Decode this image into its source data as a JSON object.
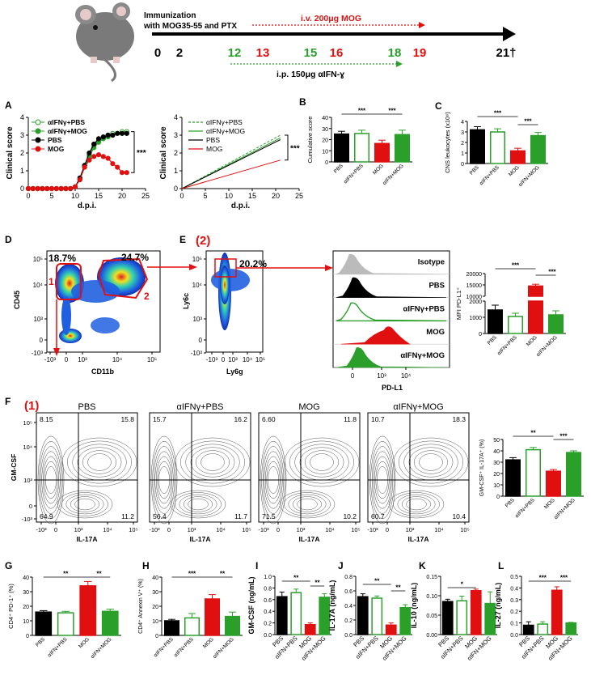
{
  "timeline": {
    "immunization_line1": "Immunization",
    "immunization_line2": "with MOG35-55 and PTX",
    "iv_label": "i.v. 200μg MOG",
    "ip_label": "i.p. 150μg αIFN-ɣ",
    "days": [
      {
        "label": "0",
        "color": "#000000"
      },
      {
        "label": "2",
        "color": "#000000"
      },
      {
        "label": "12",
        "color": "#2aa02a"
      },
      {
        "label": "13",
        "color": "#e01010"
      },
      {
        "label": "15",
        "color": "#2aa02a"
      },
      {
        "label": "16",
        "color": "#e01010"
      },
      {
        "label": "18",
        "color": "#2aa02a"
      },
      {
        "label": "19",
        "color": "#e01010"
      },
      {
        "label": "21†",
        "color": "#000000"
      }
    ]
  },
  "panels": {
    "A": "A",
    "B": "B",
    "C": "C",
    "D": "D",
    "E": "E",
    "F": "F",
    "G": "G",
    "H": "H",
    "I": "I",
    "J": "J",
    "K": "K",
    "L": "L"
  },
  "colors": {
    "pbs": "#000000",
    "aifn_pbs": "#2aa02a",
    "mog": "#e01010",
    "aifn_mog": "#2aa02a"
  },
  "chart_data": [
    {
      "id": "A1",
      "type": "line",
      "xlabel": "d.p.i.",
      "ylabel": "Clinical score",
      "xlim": [
        0,
        25
      ],
      "ylim": [
        0,
        4
      ],
      "xticks": [
        0,
        5,
        10,
        15,
        20,
        25
      ],
      "yticks": [
        0,
        1,
        2,
        3,
        4
      ],
      "series": [
        {
          "name": "αIFNγ+PBS",
          "x": [
            0,
            1,
            2,
            3,
            4,
            5,
            6,
            7,
            8,
            9,
            10,
            11,
            12,
            13,
            14,
            15,
            16,
            17,
            18,
            19,
            20,
            21
          ],
          "y": [
            0,
            0,
            0,
            0,
            0,
            0,
            0,
            0,
            0,
            0,
            0.1,
            0.5,
            1.3,
            1.9,
            2.4,
            2.7,
            2.9,
            3.0,
            3.1,
            3.1,
            3.2,
            3.2
          ]
        },
        {
          "name": "αIFNγ+MOG",
          "x": [
            0,
            1,
            2,
            3,
            4,
            5,
            6,
            7,
            8,
            9,
            10,
            11,
            12,
            13,
            14,
            15,
            16,
            17,
            18,
            19,
            20,
            21
          ],
          "y": [
            0,
            0,
            0,
            0,
            0,
            0,
            0,
            0,
            0,
            0,
            0.1,
            0.5,
            1.2,
            1.8,
            2.3,
            2.6,
            2.8,
            2.9,
            3.0,
            3.1,
            3.1,
            3.1
          ]
        },
        {
          "name": "PBS",
          "x": [
            0,
            1,
            2,
            3,
            4,
            5,
            6,
            7,
            8,
            9,
            10,
            11,
            12,
            13,
            14,
            15,
            16,
            17,
            18,
            19,
            20,
            21
          ],
          "y": [
            0,
            0,
            0,
            0,
            0,
            0,
            0,
            0,
            0,
            0,
            0.1,
            0.6,
            1.3,
            2.0,
            2.5,
            2.8,
            2.9,
            3.0,
            3.0,
            3.1,
            3.1,
            3.1
          ]
        },
        {
          "name": "MOG",
          "x": [
            0,
            1,
            2,
            3,
            4,
            5,
            6,
            7,
            8,
            9,
            10,
            11,
            12,
            13,
            14,
            15,
            16,
            17,
            18,
            19,
            20,
            21
          ],
          "y": [
            0,
            0,
            0,
            0,
            0,
            0,
            0,
            0,
            0,
            0,
            0.1,
            0.5,
            1.2,
            1.6,
            1.8,
            1.9,
            1.8,
            1.7,
            1.4,
            1.2,
            0.9,
            0.9
          ]
        }
      ],
      "significance": "***"
    },
    {
      "id": "A2",
      "type": "line",
      "xlabel": "d.p.i.",
      "ylabel": "Clinical score",
      "xlim": [
        0,
        25
      ],
      "ylim": [
        0,
        4
      ],
      "xticks": [
        0,
        5,
        10,
        15,
        20,
        25
      ],
      "yticks": [
        0,
        1,
        2,
        3,
        4
      ],
      "series": [
        {
          "name": "αIFNγ+PBS",
          "x": [
            0,
            21
          ],
          "y": [
            0,
            3.0
          ]
        },
        {
          "name": "αIFNγ+MOG",
          "x": [
            0,
            21
          ],
          "y": [
            0,
            2.85
          ]
        },
        {
          "name": "PBS",
          "x": [
            0,
            21
          ],
          "y": [
            0,
            2.75
          ]
        },
        {
          "name": "MOG",
          "x": [
            0,
            21
          ],
          "y": [
            0,
            1.6
          ]
        }
      ],
      "significance": "***"
    },
    {
      "id": "B",
      "type": "bar",
      "ylabel": "Cumulative score",
      "ylim": [
        0,
        40
      ],
      "yticks": [
        0,
        10,
        20,
        30,
        40
      ],
      "categories": [
        "PBS",
        "αIFN+PBS",
        "MOG",
        "αIFN+MOG"
      ],
      "values": [
        25,
        25.5,
        16.5,
        24.5
      ],
      "errors": [
        2.5,
        3,
        3,
        4
      ],
      "significance": [
        "***",
        "***"
      ]
    },
    {
      "id": "C",
      "type": "bar",
      "ylabel": "CNS leukocytes (x10⁶)",
      "ylim": [
        0,
        4
      ],
      "yticks": [
        0,
        1,
        2,
        3,
        4
      ],
      "categories": [
        "PBS",
        "αIFN+PBS",
        "MOG",
        "αIFN+MOG"
      ],
      "values": [
        3.2,
        3.0,
        1.2,
        2.65
      ],
      "errors": [
        0.3,
        0.3,
        0.25,
        0.3
      ],
      "significance": [
        "***",
        "***"
      ]
    },
    {
      "id": "E_mfi",
      "type": "bar",
      "ylabel": "MFI PD-L1⁺",
      "yticks_top": [
        10000,
        15000,
        20000
      ],
      "yticks_bottom": [
        0,
        1000,
        2000
      ],
      "categories": [
        "PBS",
        "αIFN+PBS",
        "MOG",
        "αIFN+MOG"
      ],
      "values": [
        1450,
        1050,
        14500,
        1150
      ],
      "errors": [
        300,
        200,
        800,
        250
      ],
      "significance": [
        "***",
        "***"
      ]
    },
    {
      "id": "F_bar",
      "type": "bar",
      "ylabel": "GM-CSF⁺ IL-17A⁺ (%)",
      "ylim": [
        0,
        50
      ],
      "yticks": [
        0,
        10,
        20,
        30,
        40,
        50
      ],
      "categories": [
        "PBS",
        "αIFN+PBS",
        "MOG",
        "αIFN+MOG"
      ],
      "values": [
        32,
        41,
        22,
        38.5
      ],
      "errors": [
        2,
        2,
        1.5,
        1.5
      ],
      "significance": [
        "**",
        "***"
      ]
    },
    {
      "id": "G",
      "type": "bar",
      "ylabel": "CD4⁺ PD-1⁺ (%)",
      "ylim": [
        0,
        40
      ],
      "yticks": [
        0,
        10,
        20,
        30,
        40
      ],
      "categories": [
        "PBS",
        "αIFN+PBS",
        "MOG",
        "αIFN+MOG"
      ],
      "values": [
        16,
        15.5,
        34,
        16.5
      ],
      "errors": [
        1,
        1,
        3,
        1.5
      ],
      "significance": [
        "**",
        "**"
      ]
    },
    {
      "id": "H",
      "type": "bar",
      "ylabel": "CD4⁺ Annexin V⁺ (%)",
      "ylim": [
        0,
        40
      ],
      "yticks": [
        0,
        10,
        20,
        30,
        40
      ],
      "categories": [
        "αIFN+PBS",
        "αIFN+PBS",
        "MOG",
        "αIFN+MOG"
      ],
      "values": [
        10,
        12,
        25,
        13
      ],
      "errors": [
        1,
        3,
        3,
        3
      ],
      "significance": [
        "***",
        "**"
      ]
    },
    {
      "id": "I",
      "type": "bar",
      "ylabel": "GM-CSF (ng/mL)",
      "ylim": [
        0,
        1.0
      ],
      "yticks": [
        0.0,
        0.2,
        0.4,
        0.6,
        0.8,
        1.0
      ],
      "categories": [
        "PBS",
        "αIFN+PBS",
        "MOG",
        "αIFN+MOG"
      ],
      "values": [
        0.65,
        0.72,
        0.17,
        0.64
      ],
      "errors": [
        0.08,
        0.06,
        0.03,
        0.06
      ],
      "significance": [
        "**",
        "**"
      ]
    },
    {
      "id": "J",
      "type": "bar",
      "ylabel": "IL-17A (ng/mL)",
      "ylim": [
        0,
        0.8
      ],
      "yticks": [
        0.0,
        0.2,
        0.4,
        0.6,
        0.8
      ],
      "categories": [
        "PBS",
        "αIFN+PBS",
        "MOG",
        "αIFN+MOG"
      ],
      "values": [
        0.52,
        0.5,
        0.13,
        0.37
      ],
      "errors": [
        0.04,
        0.03,
        0.03,
        0.04
      ],
      "significance": [
        "**",
        "**"
      ]
    },
    {
      "id": "K",
      "type": "bar",
      "ylabel": "IL-10 (ng/mL)",
      "ylim": [
        0,
        0.15
      ],
      "yticks": [
        0.0,
        0.05,
        0.1,
        0.15
      ],
      "categories": [
        "PBS",
        "αIFN+PBS",
        "MOG",
        "αIFN+MOG"
      ],
      "values": [
        0.085,
        0.087,
        0.113,
        0.08
      ],
      "errors": [
        0.006,
        0.012,
        0.004,
        0.03
      ],
      "significance": [
        "*"
      ]
    },
    {
      "id": "L",
      "type": "bar",
      "ylabel": "IL-27 (ng/mL)",
      "ylim": [
        0,
        0.5
      ],
      "yticks": [
        0.0,
        0.1,
        0.2,
        0.3,
        0.4,
        0.5
      ],
      "categories": [
        "PBS",
        "αIFN+PBS",
        "MOG",
        "αIFN+MOG"
      ],
      "values": [
        0.08,
        0.09,
        0.38,
        0.1
      ],
      "errors": [
        0.03,
        0.02,
        0.03,
        0.005
      ],
      "significance": [
        "***",
        "***"
      ]
    }
  ],
  "flow": {
    "D": {
      "xlabel": "CD11b",
      "ylabel": "CD45",
      "pct1": "18.7%",
      "pct2": "24.7%",
      "gate1": "1",
      "gate2": "2"
    },
    "E": {
      "title": "(2)",
      "xlabel": "Ly6g",
      "ylabel": "Ly6c",
      "pct": "20.2%"
    },
    "hist": {
      "xlabel": "PD-L1",
      "rows": [
        {
          "label": "Isotype",
          "color": "#bbbbbb",
          "filled": true
        },
        {
          "label": "PBS",
          "color": "#000000",
          "filled": true
        },
        {
          "label": "αIFNγ+PBS",
          "color": "#2aa02a",
          "filled": false
        },
        {
          "label": "MOG",
          "color": "#e01010",
          "filled": true
        },
        {
          "label": "αIFNγ+MOG",
          "color": "#2aa02a",
          "filled": true
        }
      ]
    },
    "F": {
      "title": "(1)",
      "xlabel": "IL-17A",
      "ylabel": "GM-CSF",
      "plots": [
        {
          "title": "PBS",
          "tl": "8.15",
          "tr": "15.8",
          "bl": "64.9",
          "br": "11.2"
        },
        {
          "title": "αIFNγ+PBS",
          "tl": "15.7",
          "tr": "16.2",
          "bl": "56.4",
          "br": "11.7"
        },
        {
          "title": "MOG",
          "tl": "6.60",
          "tr": "11.8",
          "bl": "71.5",
          "br": "10.2"
        },
        {
          "title": "αIFNγ+MOG",
          "tl": "10.7",
          "tr": "18.3",
          "bl": "60.7",
          "br": "10.4"
        }
      ]
    }
  }
}
